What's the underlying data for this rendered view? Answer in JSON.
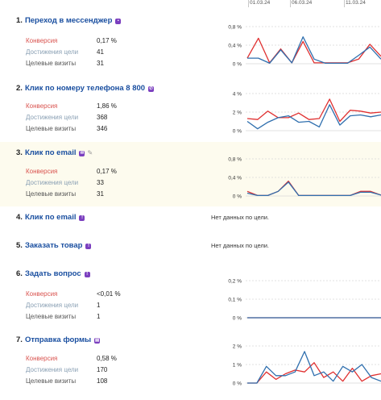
{
  "timeline": {
    "dates": [
      "01.03.24",
      "06.03.24",
      "11.03.24"
    ]
  },
  "labels": {
    "conversion": "Конверсия",
    "reaches": "Достижения цели",
    "visits": "Целевые визиты",
    "no_data": "Нет данных по цели."
  },
  "colors": {
    "conversion_line": "#e03030",
    "reaches_line": "#2f6fae",
    "grid": "#d8d8d8",
    "title_link": "#1a4fa0",
    "icon": "#7b3fbf"
  },
  "goals": [
    {
      "num": "1.",
      "title": "Переход в мессенджер",
      "icon": "messenger-icon",
      "conversion": "0,17 %",
      "reaches": "41",
      "visits": "31",
      "chart_data": {
        "type": "line",
        "y_ticks": [
          "0,8 %",
          "0,4 %",
          "0 %"
        ],
        "ylim": [
          0,
          0.8
        ],
        "series": [
          {
            "color": "#e03030",
            "values": [
              0.12,
              0.55,
              0.02,
              0.32,
              0.02,
              0.48,
              0.02,
              0.02,
              0.02,
              0.02,
              0.1,
              0.42,
              0.16
            ]
          },
          {
            "color": "#2f6fae",
            "values": [
              0.12,
              0.12,
              0.01,
              0.3,
              0.02,
              0.58,
              0.1,
              0.01,
              0.01,
              0.01,
              0.18,
              0.36,
              0.1
            ]
          }
        ]
      }
    },
    {
      "num": "2.",
      "title": "Клик по номеру телефона 8 800",
      "icon": "phone-icon",
      "conversion": "1,86 %",
      "reaches": "368",
      "visits": "346",
      "chart_data": {
        "type": "line",
        "y_ticks": [
          "4 %",
          "2 %",
          "0 %"
        ],
        "ylim": [
          0,
          4
        ],
        "series": [
          {
            "color": "#e03030",
            "values": [
              1.3,
              1.2,
              2.1,
              1.4,
              1.4,
              1.9,
              1.2,
              1.3,
              3.4,
              1.0,
              2.2,
              2.1,
              1.9,
              2.0
            ]
          },
          {
            "color": "#2f6fae",
            "values": [
              1.0,
              0.2,
              0.9,
              1.4,
              1.6,
              0.9,
              1.0,
              0.4,
              2.8,
              0.6,
              1.6,
              1.7,
              1.5,
              1.7
            ]
          }
        ]
      }
    },
    {
      "num": "3.",
      "title": "Клик по email",
      "icon": "email-icon",
      "edit_icon": "pencil-icon",
      "conversion": "0,17 %",
      "reaches": "33",
      "visits": "31",
      "chart_data": {
        "type": "line",
        "y_ticks": [
          "0,8 %",
          "0,4 %",
          "0 %"
        ],
        "ylim": [
          0,
          0.8
        ],
        "series": [
          {
            "color": "#e03030",
            "values": [
              0.1,
              0.01,
              0.01,
              0.1,
              0.32,
              0.01,
              0.01,
              0.01,
              0.01,
              0.01,
              0.01,
              0.1,
              0.1,
              0.02
            ]
          },
          {
            "color": "#2f6fae",
            "values": [
              0.06,
              0.01,
              0.01,
              0.1,
              0.3,
              0.01,
              0.01,
              0.01,
              0.01,
              0.01,
              0.01,
              0.08,
              0.08,
              0.02
            ]
          }
        ]
      }
    },
    {
      "num": "4.",
      "title": "Клик по email",
      "icon": "info-icon",
      "no_data": true
    },
    {
      "num": "5.",
      "title": "Заказать товар",
      "icon": "info-icon",
      "no_data": true
    },
    {
      "num": "6.",
      "title": "Задать вопрос",
      "icon": "info-icon",
      "conversion": "<0,01 %",
      "reaches": "1",
      "visits": "1",
      "chart_data": {
        "type": "line",
        "y_ticks": [
          "0,2 %",
          "0,1 %",
          "0 %"
        ],
        "ylim": [
          0,
          0.2
        ],
        "series": [
          {
            "color": "#e03030",
            "values": [
              0,
              0,
              0,
              0,
              0,
              0,
              0,
              0,
              0,
              0,
              0,
              0,
              0,
              0
            ]
          },
          {
            "color": "#2f6fae",
            "values": [
              0,
              0,
              0,
              0,
              0,
              0,
              0,
              0,
              0,
              0,
              0,
              0,
              0,
              0
            ]
          }
        ]
      }
    },
    {
      "num": "7.",
      "title": "Отправка формы",
      "icon": "form-icon",
      "conversion": "0,58 %",
      "reaches": "170",
      "visits": "108",
      "chart_data": {
        "type": "line",
        "y_ticks": [
          "2 %",
          "1 %",
          "0 %"
        ],
        "ylim": [
          0,
          2
        ],
        "series": [
          {
            "color": "#e03030",
            "values": [
              0.0,
              0.0,
              0.6,
              0.2,
              0.5,
              0.7,
              0.6,
              1.1,
              0.3,
              0.6,
              0.1,
              0.8,
              0.1,
              0.4,
              0.5
            ]
          },
          {
            "color": "#2f6fae",
            "values": [
              0.0,
              0.0,
              0.9,
              0.4,
              0.4,
              0.6,
              1.7,
              0.4,
              0.6,
              0.1,
              0.9,
              0.6,
              1.0,
              0.3,
              0.1
            ]
          }
        ]
      }
    }
  ]
}
